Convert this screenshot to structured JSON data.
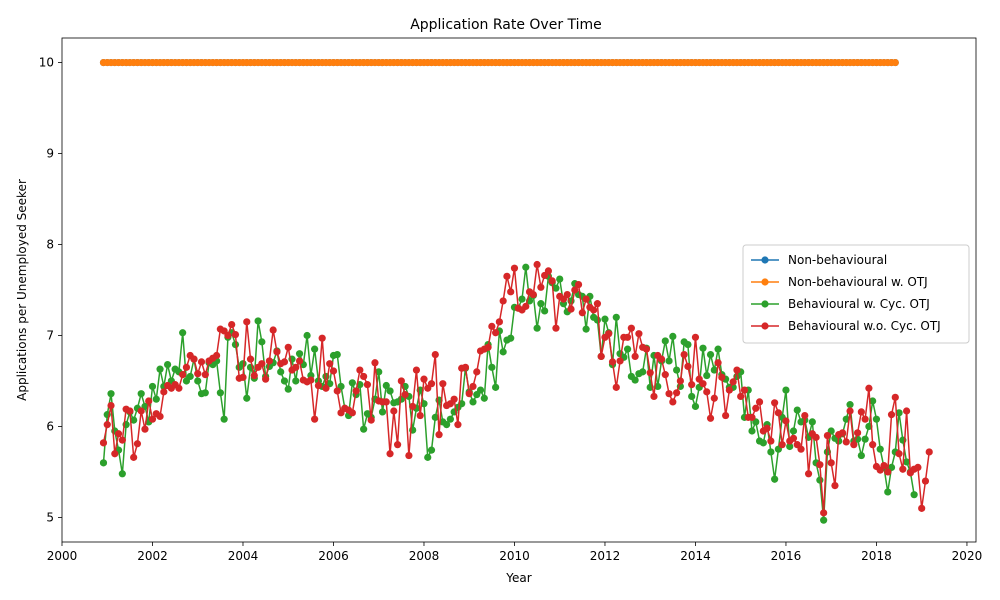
{
  "chart_data": {
    "type": "line",
    "title": "Application Rate Over Time",
    "xlabel": "Year",
    "ylabel": "Applications per Unemployed Seeker",
    "xlim": [
      2000,
      2020.2
    ],
    "ylim": [
      4.73,
      10.27
    ],
    "xticks": [
      2000,
      2002,
      2004,
      2006,
      2008,
      2010,
      2012,
      2014,
      2016,
      2018,
      2020
    ],
    "yticks": [
      5,
      6,
      7,
      8,
      9,
      10
    ],
    "grid": false,
    "legend_position": "center-right",
    "x_start": 2000.917,
    "x_step": 0.08333,
    "series": [
      {
        "name": "Non-behavioural",
        "color": "#1f77b4",
        "values": [
          10,
          10,
          10,
          10,
          10,
          10,
          10,
          10,
          10,
          10,
          10,
          10,
          10,
          10,
          10,
          10,
          10,
          10,
          10,
          10,
          10,
          10,
          10,
          10,
          10,
          10,
          10,
          10,
          10,
          10,
          10,
          10,
          10,
          10,
          10,
          10,
          10,
          10,
          10,
          10,
          10,
          10,
          10,
          10,
          10,
          10,
          10,
          10,
          10,
          10,
          10,
          10,
          10,
          10,
          10,
          10,
          10,
          10,
          10,
          10,
          10,
          10,
          10,
          10,
          10,
          10,
          10,
          10,
          10,
          10,
          10,
          10,
          10,
          10,
          10,
          10,
          10,
          10,
          10,
          10,
          10,
          10,
          10,
          10,
          10,
          10,
          10,
          10,
          10,
          10,
          10,
          10,
          10,
          10,
          10,
          10,
          10,
          10,
          10,
          10,
          10,
          10,
          10,
          10,
          10,
          10,
          10,
          10,
          10,
          10,
          10,
          10,
          10,
          10,
          10,
          10,
          10,
          10,
          10,
          10,
          10,
          10,
          10,
          10,
          10,
          10,
          10,
          10,
          10,
          10,
          10,
          10,
          10,
          10,
          10,
          10,
          10,
          10,
          10,
          10,
          10,
          10,
          10,
          10,
          10,
          10,
          10,
          10,
          10,
          10,
          10,
          10,
          10,
          10,
          10,
          10,
          10,
          10,
          10,
          10,
          10,
          10,
          10,
          10,
          10,
          10,
          10,
          10,
          10,
          10,
          10,
          10,
          10,
          10,
          10,
          10,
          10,
          10,
          10,
          10,
          10,
          10,
          10,
          10,
          10,
          10,
          10,
          10,
          10,
          10,
          10,
          10,
          10,
          10,
          10,
          10,
          10,
          10,
          10,
          10,
          10,
          10,
          10,
          10,
          10,
          10,
          10,
          10,
          10,
          10,
          10
        ]
      },
      {
        "name": "Non-behavioural w. OTJ",
        "color": "#ff7f0e",
        "values": [
          10,
          10,
          10,
          10,
          10,
          10,
          10,
          10,
          10,
          10,
          10,
          10,
          10,
          10,
          10,
          10,
          10,
          10,
          10,
          10,
          10,
          10,
          10,
          10,
          10,
          10,
          10,
          10,
          10,
          10,
          10,
          10,
          10,
          10,
          10,
          10,
          10,
          10,
          10,
          10,
          10,
          10,
          10,
          10,
          10,
          10,
          10,
          10,
          10,
          10,
          10,
          10,
          10,
          10,
          10,
          10,
          10,
          10,
          10,
          10,
          10,
          10,
          10,
          10,
          10,
          10,
          10,
          10,
          10,
          10,
          10,
          10,
          10,
          10,
          10,
          10,
          10,
          10,
          10,
          10,
          10,
          10,
          10,
          10,
          10,
          10,
          10,
          10,
          10,
          10,
          10,
          10,
          10,
          10,
          10,
          10,
          10,
          10,
          10,
          10,
          10,
          10,
          10,
          10,
          10,
          10,
          10,
          10,
          10,
          10,
          10,
          10,
          10,
          10,
          10,
          10,
          10,
          10,
          10,
          10,
          10,
          10,
          10,
          10,
          10,
          10,
          10,
          10,
          10,
          10,
          10,
          10,
          10,
          10,
          10,
          10,
          10,
          10,
          10,
          10,
          10,
          10,
          10,
          10,
          10,
          10,
          10,
          10,
          10,
          10,
          10,
          10,
          10,
          10,
          10,
          10,
          10,
          10,
          10,
          10,
          10,
          10,
          10,
          10,
          10,
          10,
          10,
          10,
          10,
          10,
          10,
          10,
          10,
          10,
          10,
          10,
          10,
          10,
          10,
          10,
          10,
          10,
          10,
          10,
          10,
          10,
          10,
          10,
          10,
          10,
          10,
          10,
          10,
          10,
          10,
          10,
          10,
          10,
          10,
          10,
          10,
          10,
          10,
          10,
          10,
          10,
          10,
          10,
          10,
          10,
          10
        ]
      },
      {
        "name": "Behavioural w. Cyc. OTJ",
        "color": "#2ca02c",
        "values": [
          5.6,
          6.13,
          6.36,
          5.95,
          5.74,
          5.48,
          6.02,
          6.16,
          6.07,
          6.2,
          6.36,
          6.22,
          6.05,
          6.44,
          6.3,
          6.63,
          6.44,
          6.68,
          6.5,
          6.63,
          6.6,
          7.03,
          6.5,
          6.55,
          6.74,
          6.5,
          6.36,
          6.37,
          6.7,
          6.68,
          6.72,
          6.37,
          6.08,
          6.98,
          7.03,
          6.9,
          6.65,
          6.69,
          6.31,
          6.65,
          6.53,
          7.16,
          6.93,
          6.55,
          6.66,
          6.7,
          6.83,
          6.6,
          6.5,
          6.41,
          6.74,
          6.5,
          6.8,
          6.68,
          7,
          6.56,
          6.85,
          6.5,
          6.44,
          6.55,
          6.47,
          6.78,
          6.79,
          6.44,
          6.2,
          6.12,
          6.48,
          6.35,
          6.46,
          5.97,
          6.14,
          6.1,
          6.3,
          6.6,
          6.16,
          6.45,
          6.39,
          6.26,
          6.27,
          6.3,
          6.44,
          6.33,
          5.96,
          6.2,
          6.4,
          6.25,
          5.66,
          5.74,
          6.1,
          6.29,
          6.05,
          6.02,
          6.08,
          6.16,
          6.21,
          6.25,
          6.64,
          6.38,
          6.27,
          6.35,
          6.4,
          6.31,
          6.9,
          6.65,
          6.43,
          7.05,
          6.82,
          6.95,
          6.97,
          7.31,
          7.3,
          7.4,
          7.75,
          7.38,
          7.44,
          7.08,
          7.35,
          7.27,
          7.65,
          7.58,
          7.52,
          7.62,
          7.35,
          7.26,
          7.38,
          7.57,
          7.45,
          7.43,
          7.07,
          7.43,
          7.2,
          7.17,
          6.77,
          7.18,
          7.03,
          6.68,
          7.2,
          6.8,
          6.76,
          6.85,
          6.55,
          6.51,
          6.58,
          6.6,
          6.86,
          6.43,
          6.78,
          6.44,
          6.72,
          6.94,
          6.72,
          6.99,
          6.62,
          6.44,
          6.93,
          6.9,
          6.33,
          6.22,
          6.43,
          6.86,
          6.56,
          6.79,
          6.62,
          6.85,
          6.57,
          6.52,
          6.43,
          6.43,
          6.55,
          6.6,
          6.1,
          6.4,
          5.95,
          6.05,
          5.84,
          5.82,
          6.02,
          5.72,
          5.42,
          5.75,
          6.1,
          6.4,
          5.78,
          5.95,
          6.18,
          6.05,
          6.07,
          5.88,
          6.05,
          5.6,
          5.41,
          4.97,
          5.72,
          5.95,
          5.87,
          5.84,
          5.92,
          6.08,
          6.24,
          5.84,
          5.86,
          5.68,
          5.86,
          6,
          6.28,
          6.08,
          5.75,
          5.55,
          5.28,
          5.55,
          5.72,
          6.15,
          5.85,
          5.61,
          5.5,
          5.25
        ]
      },
      {
        "name": "Behavioural w.o. Cyc. OTJ",
        "color": "#d62728",
        "values": [
          5.82,
          6.02,
          6.23,
          5.7,
          5.92,
          5.85,
          6.19,
          6.17,
          5.66,
          5.81,
          6.17,
          5.97,
          6.28,
          6.08,
          6.14,
          6.11,
          6.38,
          6.45,
          6.42,
          6.46,
          6.42,
          6.57,
          6.65,
          6.78,
          6.74,
          6.58,
          6.71,
          6.57,
          6.72,
          6.75,
          6.78,
          7.07,
          7.05,
          7,
          7.12,
          7.01,
          6.53,
          6.54,
          7.15,
          6.74,
          6.56,
          6.65,
          6.69,
          6.52,
          6.72,
          7.06,
          6.82,
          6.69,
          6.71,
          6.87,
          6.62,
          6.65,
          6.72,
          6.51,
          6.49,
          6.51,
          6.08,
          6.45,
          6.97,
          6.42,
          6.69,
          6.61,
          6.39,
          6.15,
          6.2,
          6.18,
          6.15,
          6.39,
          6.62,
          6.55,
          6.46,
          6.07,
          6.7,
          6.28,
          6.27,
          6.27,
          5.7,
          6.17,
          5.8,
          6.5,
          6.35,
          5.68,
          6.22,
          6.62,
          6.12,
          6.52,
          6.42,
          6.47,
          6.79,
          5.91,
          6.47,
          6.23,
          6.25,
          6.3,
          6.02,
          6.64,
          6.65,
          6.36,
          6.44,
          6.6,
          6.83,
          6.85,
          6.87,
          7.1,
          7.03,
          7.15,
          7.38,
          7.65,
          7.48,
          7.74,
          7.3,
          7.28,
          7.32,
          7.48,
          7.45,
          7.78,
          7.53,
          7.66,
          7.71,
          7.6,
          7.08,
          7.43,
          7.4,
          7.45,
          7.29,
          7.5,
          7.56,
          7.25,
          7.4,
          7.31,
          7.28,
          7.35,
          6.77,
          6.98,
          7.02,
          6.71,
          6.43,
          6.72,
          6.98,
          6.98,
          7.08,
          6.77,
          7.02,
          6.87,
          6.85,
          6.59,
          6.33,
          6.78,
          6.74,
          6.57,
          6.36,
          6.27,
          6.37,
          6.5,
          6.79,
          6.66,
          6.46,
          6.98,
          6.52,
          6.47,
          6.38,
          6.09,
          6.31,
          6.7,
          6.54,
          6.12,
          6.4,
          6.49,
          6.62,
          6.33,
          6.4,
          6.1,
          6.1,
          6.2,
          6.27,
          5.95,
          5.98,
          5.84,
          6.26,
          6.15,
          5.8,
          6.06,
          5.84,
          5.87,
          5.8,
          5.75,
          6.12,
          5.48,
          5.92,
          5.88,
          5.58,
          5.05,
          5.9,
          5.6,
          5.35,
          5.91,
          5.93,
          5.83,
          6.17,
          5.8,
          5.93,
          6.16,
          6.08,
          6.42,
          5.8,
          5.56,
          5.52,
          5.57,
          5.5,
          6.13,
          6.32,
          5.7,
          5.53,
          6.17,
          5.49,
          5.53,
          5.55,
          5.1,
          5.4,
          5.72
        ]
      }
    ]
  }
}
